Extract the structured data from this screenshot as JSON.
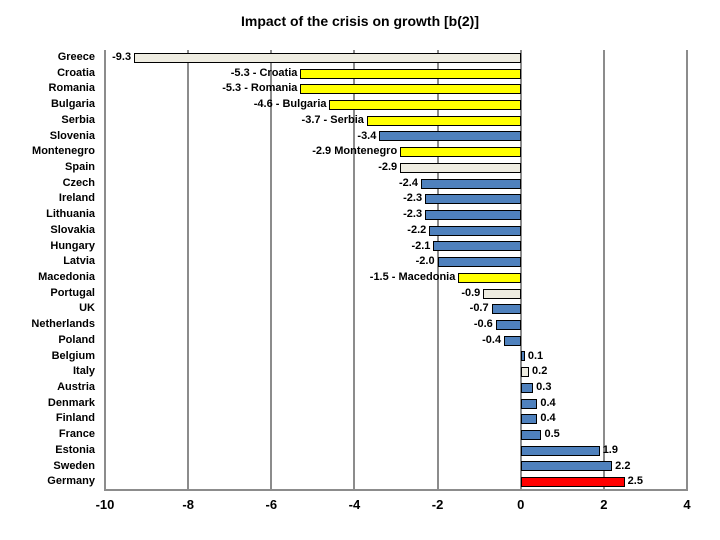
{
  "title": "Impact of the crisis on growth [b(2)]",
  "chart_data": {
    "type": "bar",
    "orientation": "horizontal",
    "title": "Impact of the crisis on growth [b(2)]",
    "categories": [
      "Greece",
      "Croatia",
      "Romania",
      "Bulgaria",
      "Serbia",
      "Slovenia",
      "Montenegro",
      "Spain",
      "Czech",
      "Ireland",
      "Lithuania",
      "Slovakia",
      "Hungary",
      "Latvia",
      "Macedonia",
      "Portugal",
      "UK",
      "Netherlands",
      "Poland",
      "Belgium",
      "Italy",
      "Austria",
      "Denmark",
      "Finland",
      "France",
      "Estonia",
      "Sweden",
      "Germany"
    ],
    "values": [
      -9.3,
      -5.3,
      -5.3,
      -4.6,
      -3.7,
      -3.4,
      -2.9,
      -2.9,
      -2.4,
      -2.3,
      -2.3,
      -2.2,
      -2.1,
      -2.0,
      -1.5,
      -0.9,
      -0.7,
      -0.6,
      -0.4,
      0.1,
      0.2,
      0.3,
      0.4,
      0.4,
      0.5,
      1.9,
      2.2,
      2.5
    ],
    "data_labels": [
      "-9.3",
      "-5.3 - Croatia",
      "-5.3 - Romania",
      "-4.6 - Bulgaria",
      "-3.7 - Serbia",
      "-3.4",
      "-2.9 Montenegro",
      "-2.9",
      "-2.4",
      "-2.3",
      "-2.3",
      "-2.2",
      "-2.1",
      "-2.0",
      "-1.5 - Macedonia",
      "-0.9",
      "-0.7",
      "-0.6",
      "-0.4",
      "0.1",
      "0.2",
      "0.3",
      "0.4",
      "0.4",
      "0.5",
      "1.9",
      "2.2",
      "2.5"
    ],
    "bar_colors": [
      "#EEECE1",
      "#FFFF00",
      "#FFFF00",
      "#FFFF00",
      "#FFFF00",
      "#4F81BD",
      "#FFFF00",
      "#EEECE1",
      "#4F81BD",
      "#4F81BD",
      "#4F81BD",
      "#4F81BD",
      "#4F81BD",
      "#4F81BD",
      "#FFFF00",
      "#EEECE1",
      "#4F81BD",
      "#4F81BD",
      "#4F81BD",
      "#4F81BD",
      "#EEECE1",
      "#4F81BD",
      "#4F81BD",
      "#4F81BD",
      "#4F81BD",
      "#4F81BD",
      "#4F81BD",
      "#FF0000"
    ],
    "xlim": [
      -10,
      4
    ],
    "x_ticks": [
      -10,
      -8,
      -6,
      -4,
      -2,
      0,
      2,
      4
    ],
    "x_tick_labels": [
      "-10",
      "-8",
      "-6",
      "-4",
      "-2",
      "0",
      "2",
      "4"
    ],
    "xlabel": "",
    "ylabel": "",
    "grid": "vertical",
    "legend": "none",
    "colors": {
      "grid": "#8C8C8C",
      "bar_border": "#000000",
      "text": "#000000",
      "background": "#FFFFFF"
    }
  }
}
